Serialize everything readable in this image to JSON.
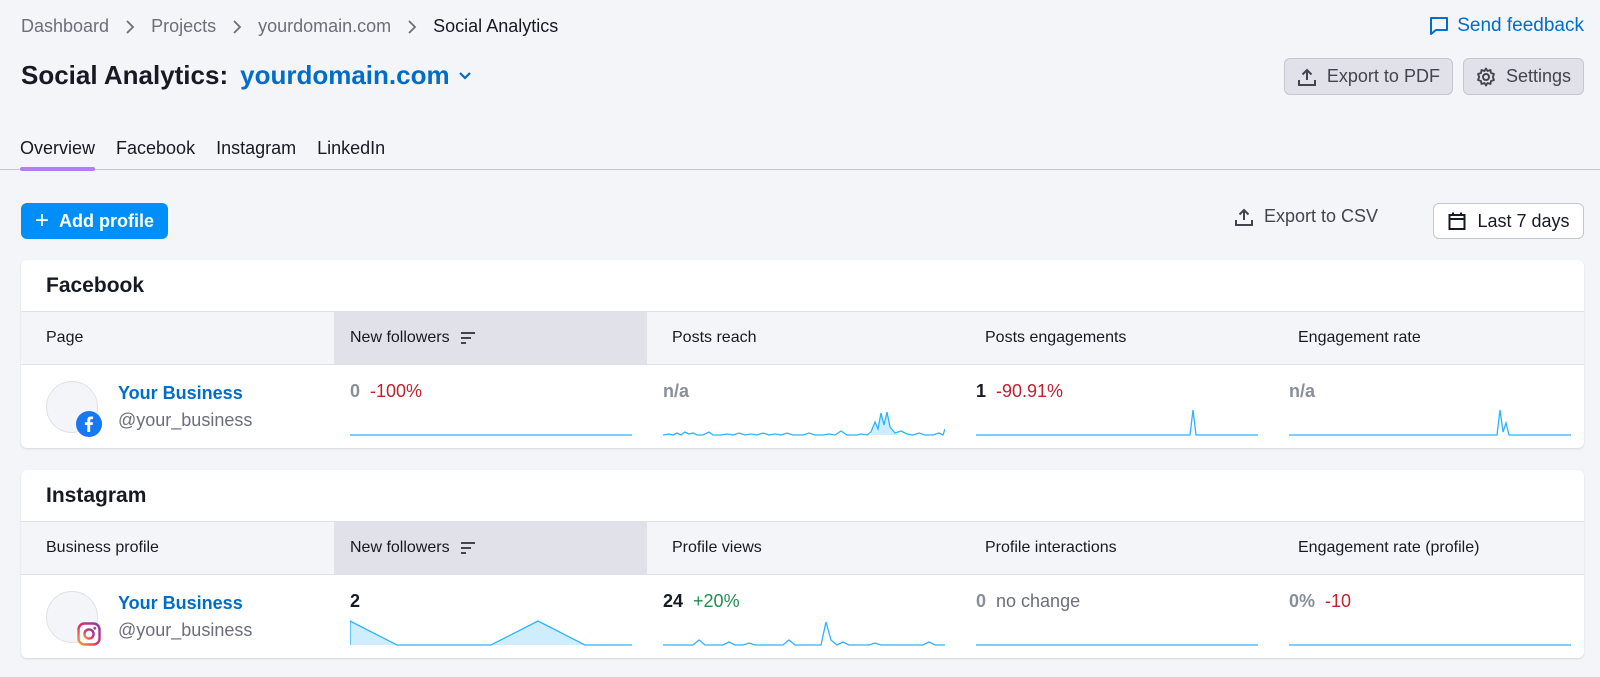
{
  "breadcrumb": [
    "Dashboard",
    "Projects",
    "yourdomain.com",
    "Social Analytics"
  ],
  "feedback_label": "Send feedback",
  "title": {
    "text": "Social Analytics:",
    "domain": "yourdomain.com"
  },
  "header_buttons": {
    "export_pdf": "Export to PDF",
    "settings": "Settings"
  },
  "tabs": [
    "Overview",
    "Facebook",
    "Instagram",
    "LinkedIn"
  ],
  "active_tab": "Overview",
  "toolbar": {
    "add_profile": "Add profile",
    "export_csv": "Export to CSV",
    "date_range": "Last 7 days"
  },
  "colors": {
    "accent": "#006dca",
    "primary_button": "#008ff8",
    "tab_underline": "#b47cf5",
    "negative": "#c21f2f",
    "positive": "#1f8e4e",
    "spark": "#2bb3ff"
  },
  "facebook": {
    "title": "Facebook",
    "columns": [
      "Page",
      "New followers",
      "Posts reach",
      "Posts engagements",
      "Engagement rate"
    ],
    "row": {
      "name": "Your Business",
      "handle": "@your_business",
      "icon": "facebook-icon",
      "metrics": [
        {
          "value": "0",
          "delta": "-100%",
          "delta_type": "neg",
          "muted": true
        },
        {
          "value": "n/a",
          "delta": "",
          "delta_type": "",
          "muted": true
        },
        {
          "value": "1",
          "delta": "-90.91%",
          "delta_type": "neg",
          "muted": false
        },
        {
          "value": "n/a",
          "delta": "",
          "delta_type": "",
          "muted": true
        }
      ]
    }
  },
  "instagram": {
    "title": "Instagram",
    "columns": [
      "Business profile",
      "New followers",
      "Profile views",
      "Profile interactions",
      "Engagement rate (profile)"
    ],
    "row": {
      "name": "Your Business",
      "handle": "@your_business",
      "icon": "instagram-icon",
      "metrics": [
        {
          "value": "2",
          "delta": "",
          "delta_type": "",
          "muted": false
        },
        {
          "value": "24",
          "delta": "+20%",
          "delta_type": "pos",
          "muted": false
        },
        {
          "value": "0",
          "delta": "no change",
          "delta_type": "neutral",
          "muted": true
        },
        {
          "value": "0%",
          "delta": "-10",
          "delta_type": "neg",
          "muted": true
        }
      ]
    }
  }
}
